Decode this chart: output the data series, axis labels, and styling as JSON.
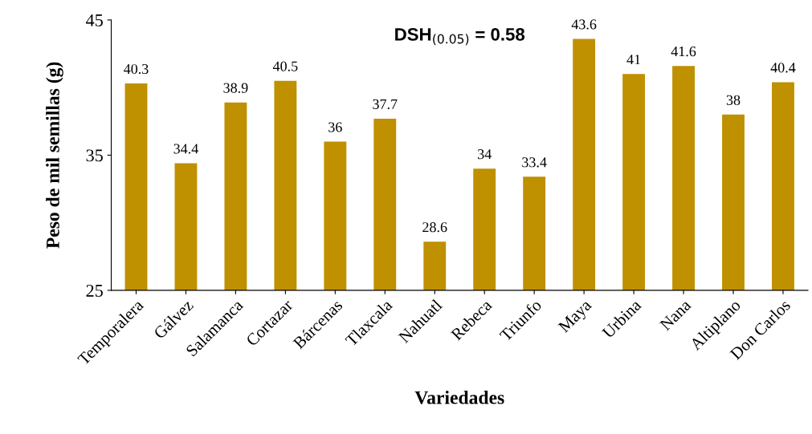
{
  "chart_data": {
    "type": "bar",
    "xlabel": "Variedades",
    "ylabel": "Peso de mil semillas (g)",
    "categories": [
      "Temporalera",
      "Gálvez",
      "Salamanca",
      "Cortazar",
      "Bárcenas",
      "Tlaxcala",
      "Nahuatl",
      "Rebeca",
      "Triunfo",
      "Maya",
      "Urbina",
      "Nana",
      "Altiplano",
      "Don Carlos"
    ],
    "values": [
      40.3,
      34.4,
      38.9,
      40.5,
      36,
      37.7,
      28.6,
      34,
      33.4,
      43.6,
      41,
      41.6,
      38,
      40.4
    ],
    "color": "#bf9000",
    "ylim": [
      25,
      45
    ],
    "yticks": [
      25,
      35,
      45
    ],
    "grid": false,
    "data_labels": true,
    "annotations": [
      "DSH$_{(0.05)}$ = 0.58"
    ]
  }
}
